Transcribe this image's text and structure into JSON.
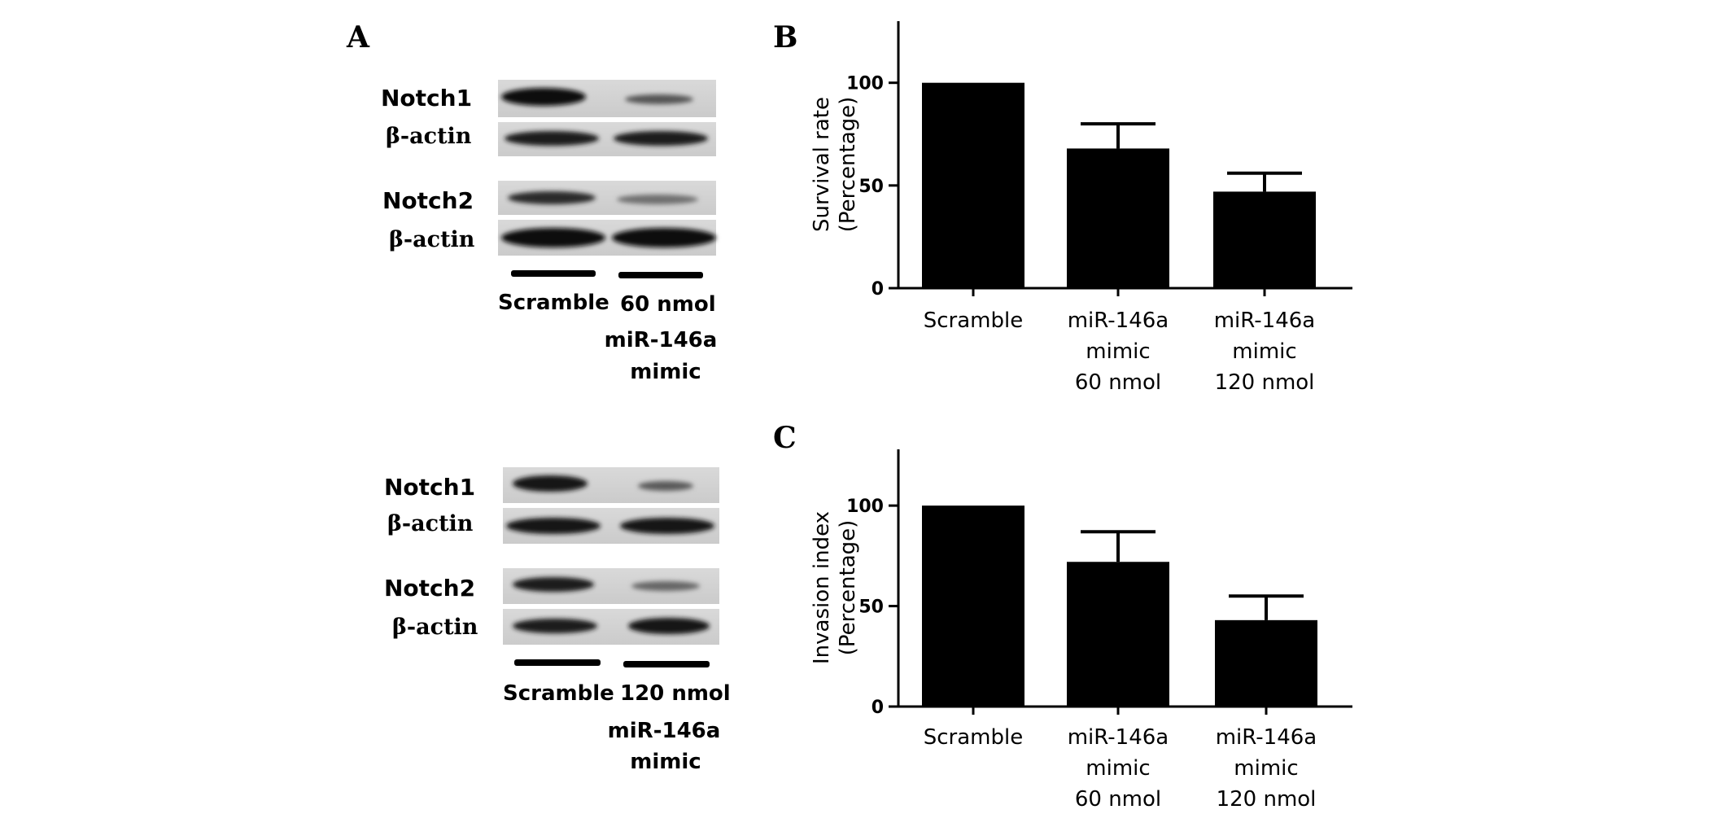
{
  "panels": {
    "A": {
      "letter": "A",
      "upper_blot": {
        "rows": [
          "Notch1",
          "β-actin",
          "Notch2",
          "β-actin"
        ],
        "lane_labels": [
          "Scramble",
          "60 nmol"
        ],
        "treatment_label": [
          "miR-146a",
          "mimic"
        ]
      },
      "lower_blot": {
        "rows": [
          "Notch1",
          "β-actin",
          "Notch2",
          "β-actin"
        ],
        "lane_labels": [
          "Scramble",
          "120 nmol"
        ],
        "treatment_label": [
          "miR-146a",
          "mimic"
        ]
      }
    },
    "B": {
      "letter": "B"
    },
    "C": {
      "letter": "C"
    }
  },
  "chart_data": [
    {
      "panel": "B",
      "type": "bar",
      "ylabel_lines": [
        "Survival rate",
        "(Percentage)"
      ],
      "categories": [
        [
          "Scramble"
        ],
        [
          "miR-146a",
          "mimic",
          "60 nmol"
        ],
        [
          "miR-146a",
          "mimic",
          "120 nmol"
        ]
      ],
      "values": [
        100,
        68,
        47
      ],
      "error": [
        0,
        12,
        9
      ],
      "ylim": [
        0,
        130
      ],
      "yticks": [
        0,
        50,
        100
      ],
      "bar_color": "#000000"
    },
    {
      "panel": "C",
      "type": "bar",
      "ylabel_lines": [
        "Invasion index",
        "(Percentage)"
      ],
      "categories": [
        [
          "Scramble"
        ],
        [
          "miR-146a",
          "mimic",
          "60 nmol"
        ],
        [
          "miR-146a",
          "mimic",
          "120 nmol"
        ]
      ],
      "values": [
        100,
        72,
        43
      ],
      "error": [
        0,
        15,
        12
      ],
      "ylim": [
        0,
        128
      ],
      "yticks": [
        0,
        50,
        100
      ],
      "bar_color": "#000000"
    }
  ]
}
